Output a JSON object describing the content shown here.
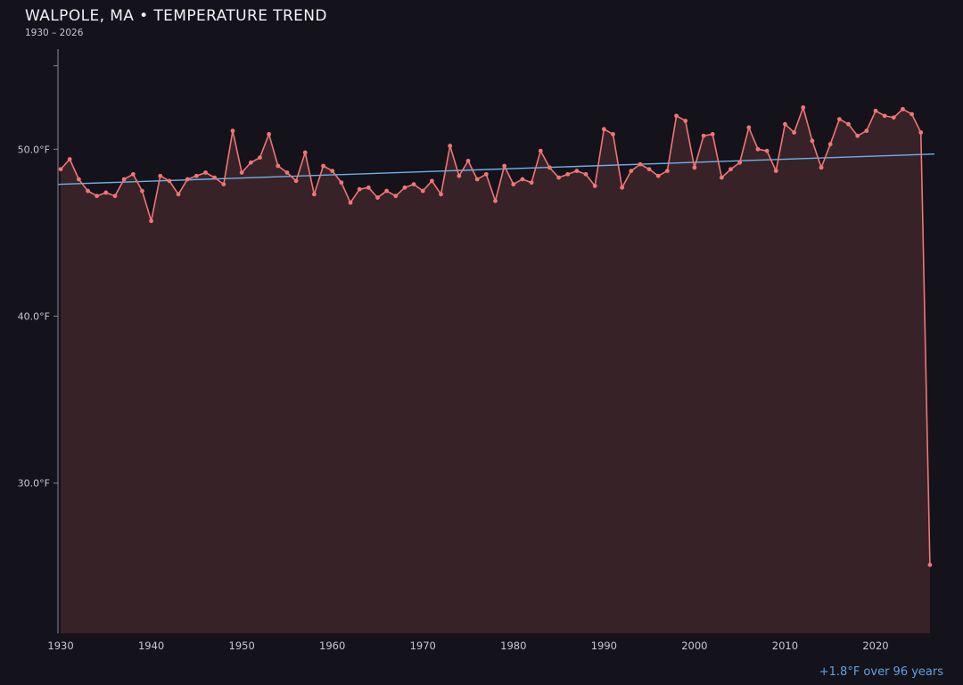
{
  "header": {
    "title": "WALPOLE, MA • TEMPERATURE TREND",
    "subtitle": "1930 – 2026"
  },
  "footer": {
    "annotation": "+1.8°F over 96 years"
  },
  "chart_data": {
    "type": "line",
    "title": "WALPOLE, MA • TEMPERATURE TREND",
    "subtitle": "1930 – 2026",
    "ylabel_unit": "°F",
    "x_start": 1930,
    "x_end": 2026,
    "values": [
      48.8,
      49.4,
      48.2,
      47.5,
      47.2,
      47.4,
      47.2,
      48.2,
      48.5,
      47.5,
      45.7,
      48.4,
      48.1,
      47.3,
      48.2,
      48.4,
      48.6,
      48.3,
      47.9,
      51.1,
      48.6,
      49.2,
      49.5,
      50.9,
      49.0,
      48.6,
      48.1,
      49.8,
      47.3,
      49.0,
      48.7,
      48.0,
      46.8,
      47.6,
      47.7,
      47.1,
      47.5,
      47.2,
      47.7,
      47.9,
      47.5,
      48.1,
      47.3,
      50.2,
      48.4,
      49.3,
      48.2,
      48.5,
      46.9,
      49.0,
      47.9,
      48.2,
      48.0,
      49.9,
      48.9,
      48.3,
      48.5,
      48.7,
      48.5,
      47.8,
      51.2,
      50.9,
      47.7,
      48.7,
      49.1,
      48.8,
      48.4,
      48.7,
      52.0,
      51.7,
      48.9,
      50.8,
      50.9,
      48.3,
      48.8,
      49.2,
      51.3,
      50.0,
      49.9,
      48.7,
      51.5,
      51.0,
      52.5,
      50.5,
      48.9,
      50.3,
      51.8,
      51.5,
      50.8,
      51.1,
      52.3,
      52.0,
      51.9,
      52.4,
      52.1,
      51.0,
      25.1
    ],
    "trend": {
      "start_year": 1930,
      "start_value": 47.9,
      "end_year": 2026,
      "end_value": 49.7,
      "label": "+1.8°F over 96 years"
    },
    "xlim": [
      1929.7,
      2026.5
    ],
    "ylim": [
      21,
      56
    ],
    "yticks": [
      {
        "value": 30,
        "label": "30.0°F"
      },
      {
        "value": 40,
        "label": "40.0°F"
      },
      {
        "value": 50,
        "label": "50.0°F"
      }
    ],
    "yticks_unlabeled": [
      55
    ],
    "xticks": [
      {
        "value": 1930,
        "label": "1930"
      },
      {
        "value": 1940,
        "label": "1940"
      },
      {
        "value": 1950,
        "label": "1950"
      },
      {
        "value": 1960,
        "label": "1960"
      },
      {
        "value": 1970,
        "label": "1970"
      },
      {
        "value": 1980,
        "label": "1980"
      },
      {
        "value": 1990,
        "label": "1990"
      },
      {
        "value": 2000,
        "label": "2000"
      },
      {
        "value": 2010,
        "label": "2010"
      },
      {
        "value": 2020,
        "label": "2020"
      }
    ],
    "legend": "none",
    "grid": false,
    "colors": {
      "background": "#14121a",
      "line": "#f07575",
      "marker": "#f07575",
      "trend": "#6cb1e8",
      "area_fill": "rgba(240,117,117,0.16)",
      "tick_text": "#c9c7d0",
      "title_text": "#f2f1f4",
      "annotation": "#5ea3e6",
      "spine": "#8a8894"
    }
  }
}
